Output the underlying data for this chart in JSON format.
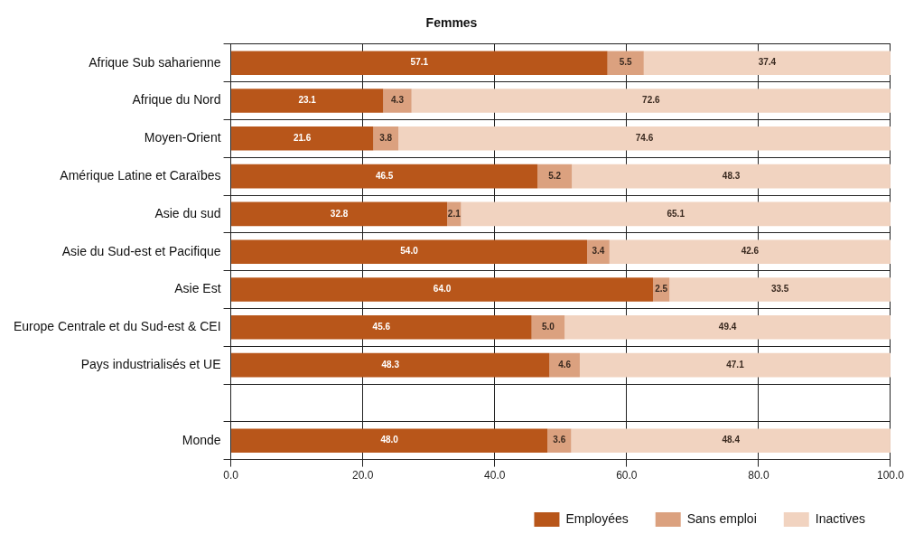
{
  "chart_data": {
    "type": "bar",
    "orientation": "horizontal",
    "stacked": true,
    "title": "Femmes",
    "categories": [
      "Afrique Sub saharienne",
      "Afrique du Nord",
      "Moyen-Orient",
      "Amérique Latine et Caraïbes",
      "Asie du sud",
      "Asie du Sud-est et Pacifique",
      "Asie Est",
      "Europe Centrale et du Sud-est & CEI",
      "Pays industrialisés et UE",
      null,
      "Monde"
    ],
    "series": [
      {
        "name": "Employées",
        "color": "#b8561a",
        "values": [
          57.1,
          23.1,
          21.6,
          46.5,
          32.8,
          54.0,
          64.0,
          45.6,
          48.3,
          null,
          48.0
        ],
        "value_labels": [
          "57.1",
          "23.1",
          "21.6",
          "46.5",
          "32.8",
          "54.0",
          "64.0",
          "45.6",
          "48.3",
          null,
          "48.0"
        ]
      },
      {
        "name": "Sans emploi",
        "color": "#dba17f",
        "values": [
          5.5,
          4.3,
          3.8,
          5.2,
          2.1,
          3.4,
          2.5,
          5.0,
          4.6,
          null,
          3.6
        ],
        "value_labels": [
          "5.5",
          "4.3",
          "3.8",
          "5.2",
          "2.1",
          "3.4",
          "2.5",
          "5.0",
          "4.6",
          null,
          "3.6"
        ]
      },
      {
        "name": "Inactives",
        "color": "#f1d3c0",
        "values": [
          37.4,
          72.6,
          74.6,
          48.3,
          65.1,
          42.6,
          33.5,
          49.4,
          47.1,
          null,
          48.4
        ],
        "value_labels": [
          "37.4",
          "72.6",
          "74.6",
          "48.3",
          "65.1",
          "42.6",
          "33.5",
          "49.4",
          "47.1",
          null,
          "48.4"
        ]
      }
    ],
    "xlim": [
      0,
      100
    ],
    "xticks": [
      {
        "value": 0,
        "label": "0.0"
      },
      {
        "value": 20,
        "label": "20.0"
      },
      {
        "value": 40,
        "label": "40.0"
      },
      {
        "value": 60,
        "label": "60.0"
      },
      {
        "value": 80,
        "label": "80.0"
      },
      {
        "value": 100,
        "label": "100.0"
      }
    ],
    "grid": true,
    "legend": "bottom right"
  }
}
